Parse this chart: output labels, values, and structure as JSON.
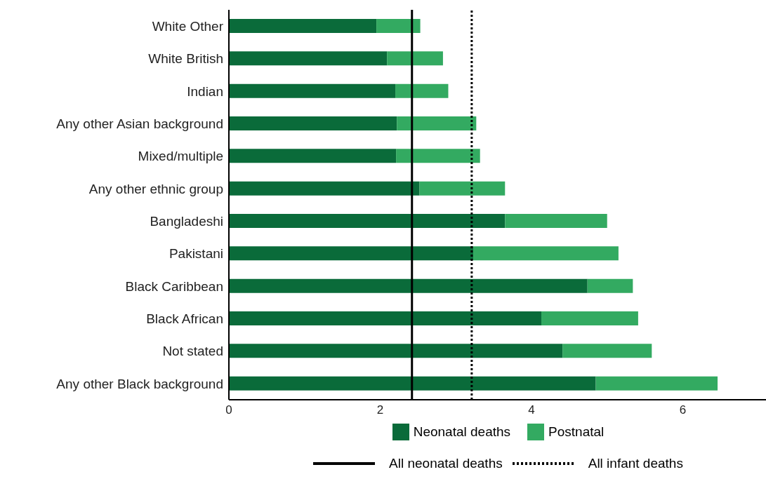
{
  "chart_data": {
    "type": "bar",
    "orientation": "horizontal",
    "stacked": true,
    "categories": [
      "White Other",
      "White British",
      "Indian",
      "Any other Asian background",
      "Mixed/multiple",
      "Any other ethnic group",
      "Bangladeshi",
      "Pakistani",
      "Black Caribbean",
      "Black African",
      "Not stated",
      "Any other Black background"
    ],
    "series": [
      {
        "name": "Neonatal deaths",
        "color": "#0a6b3a",
        "values": [
          1.95,
          2.09,
          2.2,
          2.22,
          2.21,
          2.52,
          3.65,
          3.23,
          4.74,
          4.13,
          4.41,
          4.85
        ]
      },
      {
        "name": "Postnatal",
        "color": "#33aa61",
        "values": [
          0.58,
          0.74,
          0.7,
          1.05,
          1.11,
          1.13,
          1.35,
          1.92,
          0.6,
          1.28,
          1.18,
          1.61
        ]
      }
    ],
    "xlim": [
      0,
      7.1
    ],
    "xticks": [
      0,
      2,
      4,
      6
    ],
    "legend": "bottom",
    "ref_lines": [
      {
        "axis": "x",
        "value": 2.42,
        "label": "All neonatal deaths",
        "color": "#000000",
        "line_style": "solid"
      },
      {
        "axis": "x",
        "value": 3.21,
        "label": "All infant deaths",
        "color": "#000000",
        "line_style": "dotted"
      }
    ]
  }
}
